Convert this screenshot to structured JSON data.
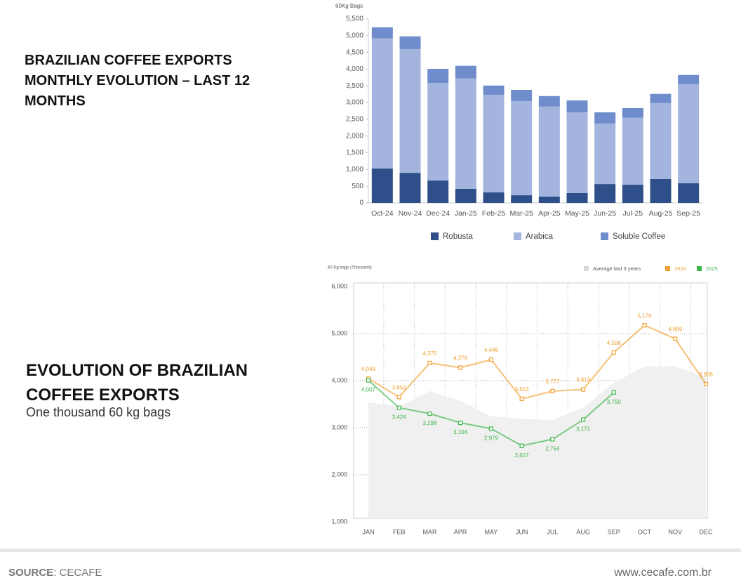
{
  "chart_data": [
    {
      "type": "stacked_bar",
      "title": "BRAZILIAN COFFEE EXPORTS MONTHLY EVOLUTION – LAST 12 MONTHS",
      "y_label": "60Kg Bags",
      "categories": [
        "Oct-24",
        "Nov-24",
        "Dec-24",
        "Jan-25",
        "Feb-25",
        "Mar-25",
        "Apr-25",
        "May-25",
        "Jun-25",
        "Jul-25",
        "Aug-25",
        "Sep-25"
      ],
      "series": [
        {
          "name": "Robusta",
          "color": "#2f4f8a",
          "values": [
            1030,
            900,
            670,
            420,
            315,
            230,
            190,
            295,
            565,
            545,
            715,
            590
          ]
        },
        {
          "name": "Arabica",
          "color": "#a3b5de",
          "values": [
            3890,
            3700,
            2920,
            3300,
            2920,
            2815,
            2690,
            2415,
            1810,
            2000,
            2270,
            2960
          ]
        },
        {
          "name": "Soluble Coffee",
          "color": "#6f8ccc",
          "values": [
            330,
            380,
            420,
            380,
            275,
            335,
            315,
            355,
            335,
            290,
            275,
            275
          ]
        }
      ],
      "ylim": [
        0,
        5500
      ],
      "yticks": [
        0,
        {
          "value": 500,
          "label": "500"
        },
        {
          "value": 1000,
          "label": "1,000"
        },
        {
          "value": 1500,
          "label": "1,500"
        },
        {
          "value": 2000,
          "label": "2,000"
        },
        {
          "value": 2500,
          "label": "2,500"
        },
        {
          "value": 3000,
          "label": "3,000"
        },
        {
          "value": 3500,
          "label": "3,500"
        },
        {
          "value": 4000,
          "label": "4,000"
        },
        {
          "value": 4500,
          "label": "4,500"
        },
        {
          "value": 5000,
          "label": "5,000"
        },
        {
          "value": 5500,
          "label": "5,500"
        }
      ]
    },
    {
      "type": "line",
      "title": "EVOLUTION OF BRAZILIAN COFFEE EXPORTS",
      "subtitle": "One thousand 60 kg bags",
      "y_label": "60 Kg bags (Thousand)",
      "categories": [
        "JAN",
        "FEB",
        "MAR",
        "APR",
        "MAY",
        "JUN",
        "JUL",
        "AUG",
        "SEP",
        "OCT",
        "NOV",
        "DEC"
      ],
      "series": [
        {
          "name": "Average last 5 years",
          "color": "#d9d9d9",
          "style": "area",
          "values": [
            3540,
            3450,
            3780,
            3570,
            3240,
            3190,
            3160,
            3430,
            3950,
            4300,
            4300,
            4070
          ]
        },
        {
          "name": "2024",
          "color": "#f0a030",
          "style": "line",
          "values": [
            4043,
            3652,
            4375,
            4276,
            4446,
            3613,
            3777,
            3813,
            4598,
            5176,
            4889,
            3926
          ],
          "value_labels": [
            "4,043",
            "3,652",
            "4,375",
            "4,276",
            "4,446",
            "3,613",
            "3,777",
            "3,813",
            "4,598",
            "5,176",
            "4,889",
            "3,926"
          ]
        },
        {
          "name": "2025",
          "color": "#3cb54a",
          "style": "line",
          "values": [
            4007,
            3424,
            3298,
            3104,
            2979,
            2617,
            2754,
            3171,
            3750,
            null,
            null,
            null
          ],
          "value_labels": [
            "4,007",
            "3,424",
            "3,298",
            "3,104",
            "2,979",
            "2,617",
            "2,754",
            "3,171",
            "3,750",
            null,
            null,
            null
          ]
        }
      ],
      "ylim": [
        1000,
        6000
      ],
      "yticks": [
        {
          "value": 1000,
          "label": "1,000"
        },
        {
          "value": 2000,
          "label": "2,000"
        },
        {
          "value": 3000,
          "label": "3,000"
        },
        {
          "value": 4000,
          "label": "4,000"
        },
        {
          "value": 5000,
          "label": "5,000"
        },
        {
          "value": 6000,
          "label": "6,000"
        }
      ],
      "grid": true
    }
  ],
  "footer": {
    "source_label": "SOURCE",
    "source_value": ": CECAFE",
    "website": "www.cecafe.com.br"
  }
}
